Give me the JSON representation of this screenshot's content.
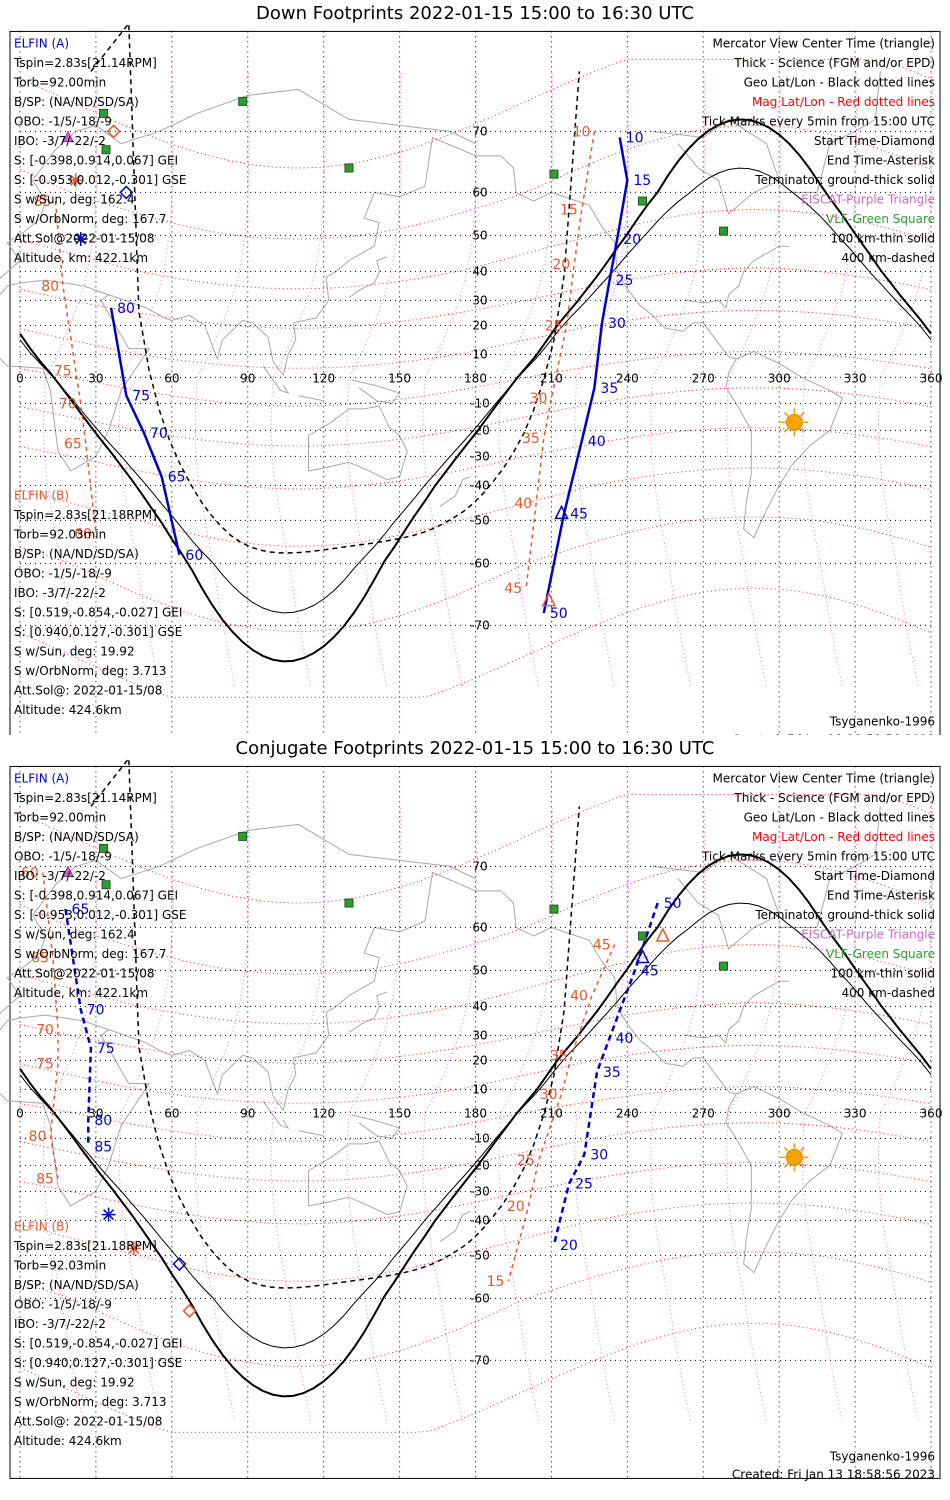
{
  "chart_data": [
    {
      "type": "map",
      "title": "Down Footprints 2022-01-15 15:00 to 16:30 UTC",
      "projection": "Mercator",
      "x_ticks": [
        "0",
        "30",
        "60",
        "90",
        "120",
        "150",
        "180",
        "210",
        "240",
        "270",
        "300",
        "330",
        "360"
      ],
      "y_ticks": [
        "70",
        "60",
        "50",
        "40",
        "30",
        "20",
        "10",
        "-10",
        "-20",
        "-30",
        "-40",
        "-50",
        "-60",
        "-70"
      ],
      "elfin_a": [
        "ELFIN (A)",
        "Tspin=2.83s[21.14RPM]",
        "Torb=92.00min",
        "B/SP: (NA/ND/SD/SA)",
        "OBO: -1/5/-18/-9",
        "IBO: -3/7/-22/-2",
        "S: [-0.398,0.914,0.067] GEI",
        "S: [-0.953,0.012,-0.301] GSE",
        "S w/Sun, deg: 162.4",
        "S w/OrbNorm, deg: 167.7",
        "Att.Sol@2022-01-15/08",
        "Altitude, km: 422.1km"
      ],
      "elfin_b": [
        "ELFIN (B)",
        "Tspin=2.83s[21.18RPM]",
        "Torb=92.03min",
        "B/SP: (NA/ND/SD/SA)",
        "OBO: -1/5/-18/-9",
        "IBO: -3/7/-22/-2",
        "S: [0.519,-0.854,-0.027] GEI",
        "S: [0.940,0.127,-0.301] GSE",
        "S w/Sun, deg: 19.92",
        "S w/OrbNorm, deg: 3.713",
        "Att.Sol@: 2022-01-15/08",
        "Altitude: 424.6km"
      ],
      "legend": [
        "Mercator View Center Time (triangle)",
        "Thick - Science (FGM and/or EPD)",
        "Geo Lat/Lon - Black dotted lines",
        "Mag Lat/Lon - Red dotted lines",
        "Tick Marks every 5min from 15:00 UTC",
        "Start Time-Diamond",
        "End Time-Asterisk",
        "Terminator: ground-thick solid",
        "EISCAT-Purple Triangle",
        "VLF-Green Square",
        "100 km-thin solid",
        "400 km-dashed"
      ],
      "legend_colors": [
        "#000000",
        "#000000",
        "#000000",
        "#ff0000",
        "#000000",
        "#000000",
        "#000000",
        "#000000",
        "#cc66cc",
        "#339933",
        "#000000",
        "#000000"
      ],
      "model": "Tsyganenko-1996",
      "created": "Created: Fri Jan 13 18:58:56 2023",
      "track_a_times": [
        {
          "t": "10",
          "lon": 237,
          "lat": 69
        },
        {
          "t": "15",
          "lon": 240,
          "lat": 62
        },
        {
          "t": "20",
          "lon": 236,
          "lat": 49
        },
        {
          "t": "25",
          "lon": 233,
          "lat": 37
        },
        {
          "t": "30",
          "lon": 230,
          "lat": 21
        },
        {
          "t": "35",
          "lon": 227,
          "lat": -4
        },
        {
          "t": "40",
          "lon": 222,
          "lat": -24
        },
        {
          "t": "45",
          "lon": 215,
          "lat": -48
        },
        {
          "t": "50",
          "lon": 207,
          "lat": -68
        }
      ],
      "track_b_times": [
        {
          "t": "80",
          "lon": 36,
          "lat": 27
        },
        {
          "t": "75",
          "lon": 42,
          "lat": -7
        },
        {
          "t": "70",
          "lon": 49,
          "lat": -21
        },
        {
          "t": "65",
          "lon": 56,
          "lat": -37
        },
        {
          "t": "60",
          "lon": 63,
          "lat": -58
        }
      ],
      "mag_labels_a": [
        {
          "t": "10",
          "lon": 227,
          "lat": 70
        },
        {
          "t": "15",
          "lon": 222,
          "lat": 56
        },
        {
          "t": "20",
          "lon": 219,
          "lat": 42
        },
        {
          "t": "25",
          "lon": 216,
          "lat": 20
        },
        {
          "t": "30",
          "lon": 210,
          "lat": -8
        },
        {
          "t": "35",
          "lon": 207,
          "lat": -23
        },
        {
          "t": "40",
          "lon": 204,
          "lat": -45
        },
        {
          "t": "45",
          "lon": 200,
          "lat": -64
        }
      ],
      "mag_labels_b": [
        {
          "t": "85",
          "lon": 14,
          "lat": 58
        },
        {
          "t": "80",
          "lon": 17,
          "lat": 35
        },
        {
          "t": "75",
          "lon": 22,
          "lat": 3
        },
        {
          "t": "70",
          "lon": 24,
          "lat": -10
        },
        {
          "t": "65",
          "lon": 26,
          "lat": -25
        },
        {
          "t": "60",
          "lon": 30,
          "lat": -53
        }
      ],
      "stations_vlf": [
        [
          88,
          75
        ],
        [
          33,
          73
        ],
        [
          34,
          67
        ],
        [
          130,
          64
        ],
        [
          211,
          63
        ],
        [
          246,
          58
        ],
        [
          278,
          51
        ]
      ],
      "stations_eiscat": [
        [
          19,
          69
        ]
      ],
      "sun": {
        "lon": 306,
        "lat": -17
      }
    },
    {
      "type": "map",
      "title": "Conjugate Footprints 2022-01-15 15:00 to 16:30 UTC",
      "projection": "Mercator",
      "x_ticks": [
        "0",
        "30",
        "60",
        "90",
        "120",
        "150",
        "180",
        "210",
        "240",
        "270",
        "300",
        "330",
        "360"
      ],
      "y_ticks": [
        "70",
        "60",
        "50",
        "40",
        "30",
        "20",
        "10",
        "-10",
        "-20",
        "-30",
        "-40",
        "-50",
        "-60",
        "-70"
      ],
      "elfin_a": [
        "ELFIN (A)",
        "Tspin=2.83s[21.14RPM]",
        "Torb=92.00min",
        "B/SP: (NA/ND/SD/SA)",
        "OBO: -1/5/-18/-9",
        "IBO: -3/7/-22/-2",
        "S: [-0.398,0.914,0.067] GEI",
        "S: [-0.953,0.012,-0.301] GSE",
        "S w/Sun, deg: 162.4",
        "S w/OrbNorm, deg: 167.7",
        "Att.Sol@2022-01-15/08",
        "Altitude, km: 422.1km"
      ],
      "elfin_b": [
        "ELFIN (B)",
        "Tspin=2.83s[21.18RPM]",
        "Torb=92.03min",
        "B/SP: (NA/ND/SD/SA)",
        "OBO: -1/5/-18/-9",
        "IBO: -3/7/-22/-2",
        "S: [0.519,-0.854,-0.027] GEI",
        "S: [0.940,0.127,-0.301] GSE",
        "S w/Sun, deg: 19.92",
        "S w/OrbNorm, deg: 3.713",
        "Att.Sol@: 2022-01-15/08",
        "Altitude: 424.6km"
      ],
      "legend": [
        "Mercator View Center Time (triangle)",
        "Thick - Science (FGM and/or EPD)",
        "Geo Lat/Lon - Black dotted lines",
        "Mag Lat/Lon - Red dotted lines",
        "Tick Marks every 5min from 15:00 UTC",
        "Start Time-Diamond",
        "End Time-Asterisk",
        "Terminator: ground-thick solid",
        "EISCAT-Purple Triangle",
        "VLF-Green Square",
        "100 km-thin solid",
        "400 km-dashed"
      ],
      "legend_colors": [
        "#000000",
        "#000000",
        "#000000",
        "#ff0000",
        "#000000",
        "#000000",
        "#000000",
        "#000000",
        "#cc66cc",
        "#339933",
        "#000000",
        "#000000"
      ],
      "model": "Tsyganenko-1996",
      "created": "Created: Fri Jan 13 18:58:56 2023",
      "track_a_times": [
        {
          "t": "50",
          "lon": 252,
          "lat": 64
        },
        {
          "t": "45",
          "lon": 243,
          "lat": 50
        },
        {
          "t": "40",
          "lon": 233,
          "lat": 29
        },
        {
          "t": "35",
          "lon": 228,
          "lat": 16
        },
        {
          "t": "30",
          "lon": 223,
          "lat": -16
        },
        {
          "t": "25",
          "lon": 217,
          "lat": -27
        },
        {
          "t": "20",
          "lon": 211,
          "lat": -47
        }
      ],
      "track_b_times": [
        {
          "t": "65",
          "lon": 18,
          "lat": 63
        },
        {
          "t": "70",
          "lon": 24,
          "lat": 39
        },
        {
          "t": "75",
          "lon": 28,
          "lat": 25
        },
        {
          "t": "80",
          "lon": 27,
          "lat": -3
        },
        {
          "t": "85",
          "lon": 27,
          "lat": -13
        }
      ],
      "mag_labels_a": [
        {
          "t": "45",
          "lon": 235,
          "lat": 56
        },
        {
          "t": "40",
          "lon": 226,
          "lat": 43
        },
        {
          "t": "35",
          "lon": 218,
          "lat": 22
        },
        {
          "t": "30",
          "lon": 214,
          "lat": 8
        },
        {
          "t": "25",
          "lon": 205,
          "lat": -18
        },
        {
          "t": "20",
          "lon": 201,
          "lat": -35
        },
        {
          "t": "15",
          "lon": 193,
          "lat": -56
        }
      ],
      "mag_labels_b": [
        {
          "t": "60",
          "lon": 9,
          "lat": 69
        },
        {
          "t": "65",
          "lon": 13,
          "lat": 53
        },
        {
          "t": "70",
          "lon": 15,
          "lat": 32
        },
        {
          "t": "75",
          "lon": 15,
          "lat": 19
        },
        {
          "t": "80",
          "lon": 12,
          "lat": -9
        },
        {
          "t": "85",
          "lon": 15,
          "lat": -25
        }
      ],
      "stations_vlf": [
        [
          88,
          75
        ],
        [
          33,
          73
        ],
        [
          34,
          67
        ],
        [
          130,
          64
        ],
        [
          211,
          63
        ],
        [
          246,
          58
        ],
        [
          278,
          51
        ]
      ],
      "stations_eiscat": [
        [
          19,
          69
        ]
      ],
      "sun": {
        "lon": 306,
        "lat": -17
      }
    }
  ]
}
